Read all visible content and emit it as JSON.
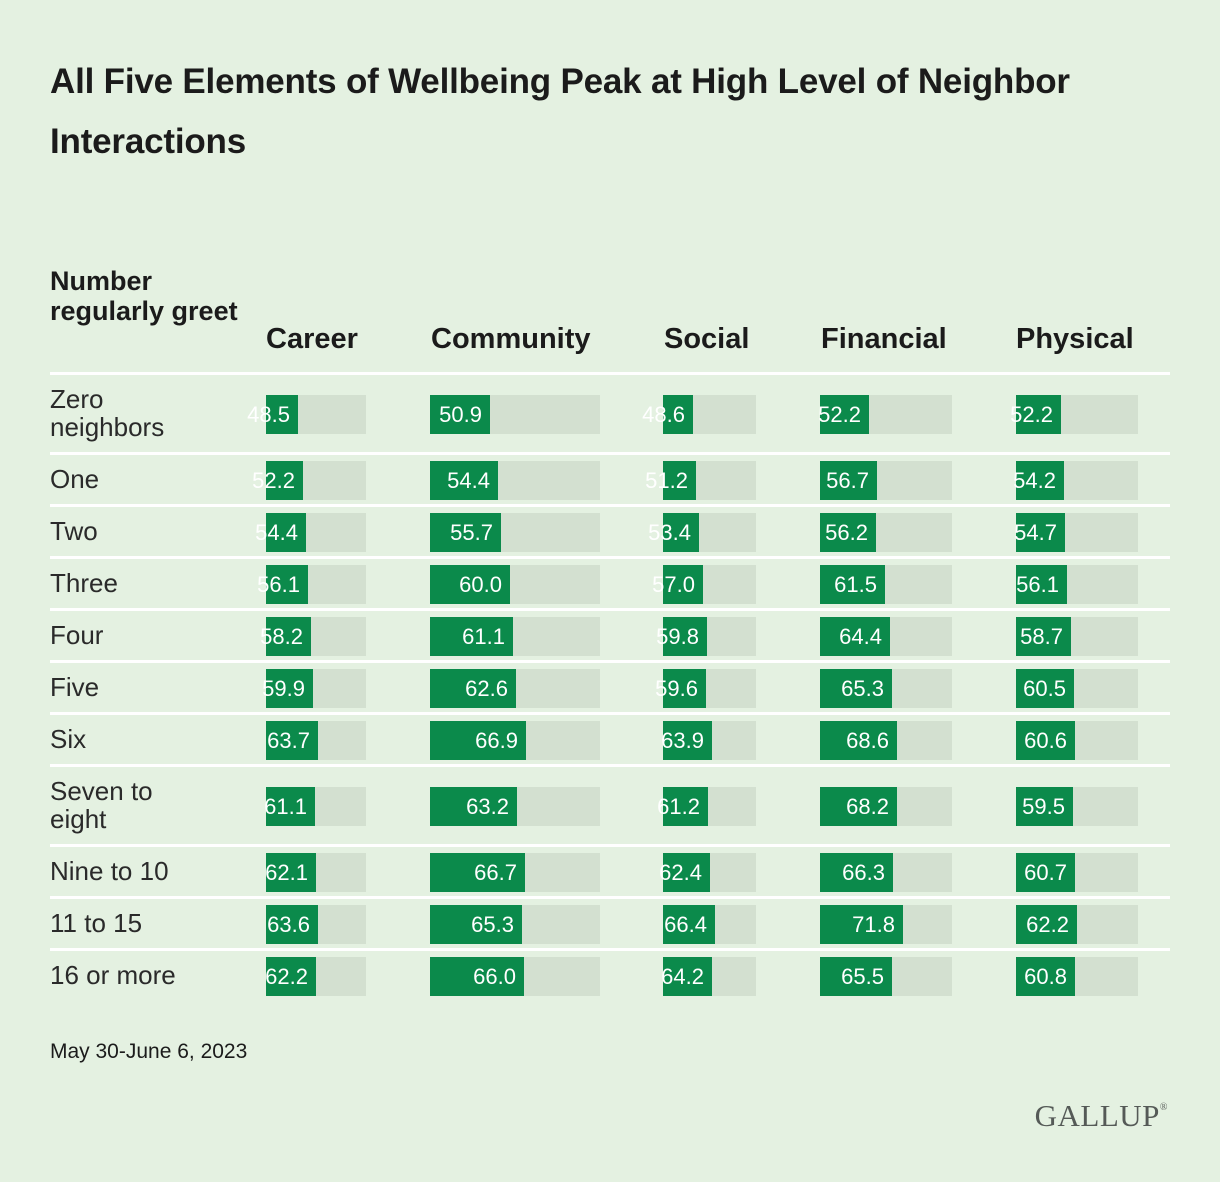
{
  "title": "All Five Elements of Wellbeing Peak at High Level of Neighbor Interactions",
  "footnote": "May 30-June 6, 2023",
  "source_logo": "GALLUP",
  "colors": {
    "background": "#e4f1e1",
    "bar": "#0b8a4b",
    "track": "#d3e0d0"
  },
  "chart_data": {
    "type": "bar",
    "title": "All Five Elements of Wellbeing Peak at High Level of Neighbor Interactions",
    "row_header": "Number regularly greet",
    "categories": [
      "Zero neighbors",
      "One",
      "Two",
      "Three",
      "Four",
      "Five",
      "Six",
      "Seven to eight",
      "Nine to 10",
      "11 to 15",
      "16 or more"
    ],
    "ylim": [
      0,
      100
    ],
    "series": [
      {
        "name": "Career",
        "values": [
          48.5,
          52.2,
          54.4,
          56.1,
          58.2,
          59.9,
          63.7,
          61.1,
          62.1,
          63.6,
          62.2
        ]
      },
      {
        "name": "Community",
        "values": [
          50.9,
          54.4,
          55.7,
          60.0,
          61.1,
          62.6,
          66.9,
          63.2,
          66.7,
          65.3,
          66.0
        ]
      },
      {
        "name": "Social",
        "values": [
          48.6,
          51.2,
          53.4,
          57.0,
          59.8,
          59.6,
          63.9,
          61.2,
          62.4,
          66.4,
          64.2
        ]
      },
      {
        "name": "Financial",
        "values": [
          52.2,
          56.7,
          56.2,
          61.5,
          64.4,
          65.3,
          68.6,
          68.2,
          66.3,
          71.8,
          65.5
        ]
      },
      {
        "name": "Physical",
        "values": [
          52.2,
          54.2,
          54.7,
          56.1,
          58.7,
          60.5,
          60.6,
          59.5,
          60.7,
          62.2,
          60.8
        ]
      }
    ]
  }
}
